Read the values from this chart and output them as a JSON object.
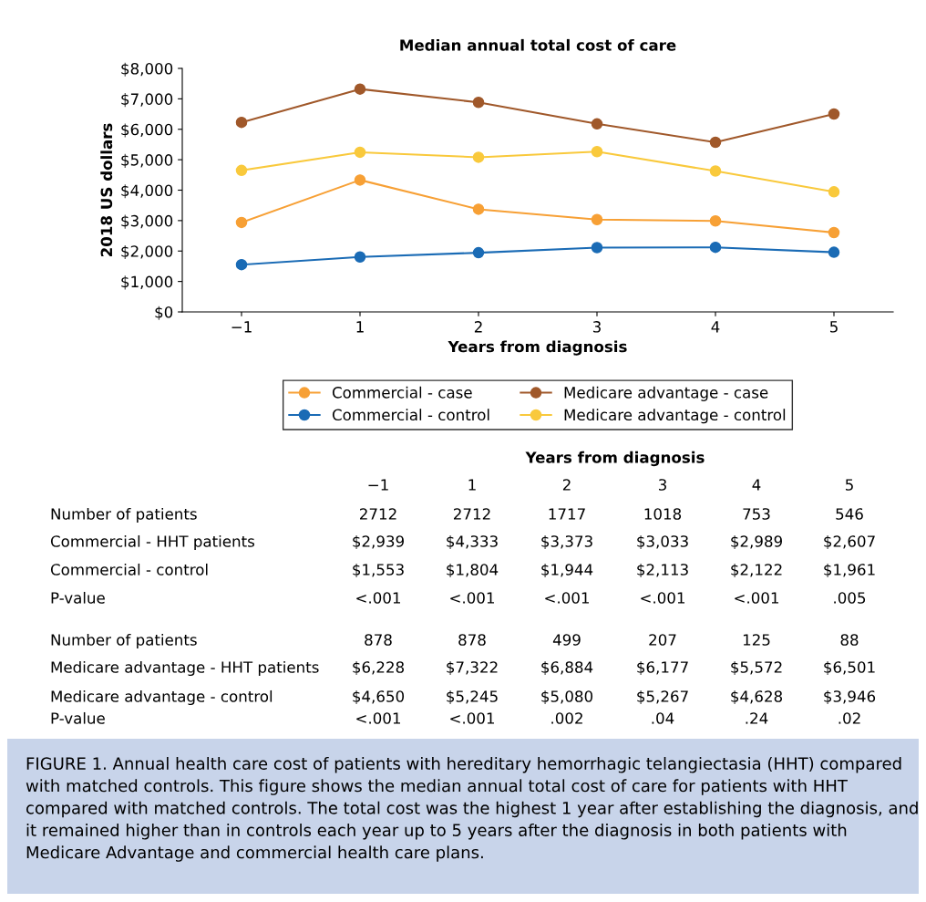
{
  "chart_data": {
    "type": "line",
    "title": "Median annual total cost of care",
    "xlabel": "Years from diagnosis",
    "ylabel": "2018 US dollars",
    "categories": [
      "−1",
      "1",
      "2",
      "3",
      "4",
      "5"
    ],
    "series": [
      {
        "name": "Commercial - case",
        "color": "#f7a035",
        "values": [
          2939,
          4333,
          3373,
          3033,
          2989,
          2607
        ]
      },
      {
        "name": "Commercial - control",
        "color": "#1a6bb5",
        "values": [
          1553,
          1804,
          1944,
          2113,
          2122,
          1961
        ]
      },
      {
        "name": "Medicare advantage - case",
        "color": "#a0582a",
        "values": [
          6228,
          7322,
          6884,
          6177,
          5572,
          6501
        ]
      },
      {
        "name": "Medicare advantage - control",
        "color": "#f9c93c",
        "values": [
          4650,
          5245,
          5080,
          5267,
          4628,
          3946
        ]
      }
    ],
    "ylim": [
      0,
      8000
    ],
    "yticks": [
      {
        "value": 0,
        "label": "$0"
      },
      {
        "value": 1000,
        "label": "$1,000"
      },
      {
        "value": 2000,
        "label": "$2,000"
      },
      {
        "value": 3000,
        "label": "$3,000"
      },
      {
        "value": 4000,
        "label": "$4,000"
      },
      {
        "value": 5000,
        "label": "$5,000"
      },
      {
        "value": 6000,
        "label": "$6,000"
      },
      {
        "value": 7000,
        "label": "$7,000"
      },
      {
        "value": 8000,
        "label": "$8,000"
      }
    ],
    "grid": false,
    "legend": "bottom",
    "marker": "circle",
    "line_style": "solid",
    "annotations": [
      "Years from diagnosis",
      "Number of patients",
      "2712",
      "2712",
      "1717",
      "1018",
      "753",
      "546",
      "Commercial - HHT patients",
      "$2,939",
      "$4,333",
      "$3,373",
      "$3,033",
      "$2,989",
      "$2,607",
      "Commercial - control",
      "$1,553",
      "$1,804",
      "$1,944",
      "$2,113",
      "$2,122",
      "$1,961",
      "P-value",
      "<.001",
      "<.001",
      "<.001",
      "<.001",
      "<.001",
      ".005",
      "Number of patients",
      "878",
      "878",
      "499",
      "207",
      "125",
      "88",
      "Medicare advantage - HHT patients",
      "$6,228",
      "$7,322",
      "$6,884",
      "$6,177",
      "$5,572",
      "$6,501",
      "Medicare advantage - control",
      "$4,650",
      "$5,245",
      "$5,080",
      "$5,267",
      "$4,628",
      "$3,946",
      "P-value",
      "<.001",
      "<.001",
      ".002",
      ".04",
      ".24",
      ".02",
      "FIGURE 1. Annual health care cost of patients with hereditary hemorrhagic telangiectasia (HHT) compared with matched controls. This figure shows the median annual total cost of care for patients with HHT compared with matched controls. The total cost was the highest 1 year after establishing the diagnosis, and it remained higher than in controls each year up to 5 years after the diagnosis in both patients with Medicare Advantage and commercial health care plans."
    ]
  }
}
